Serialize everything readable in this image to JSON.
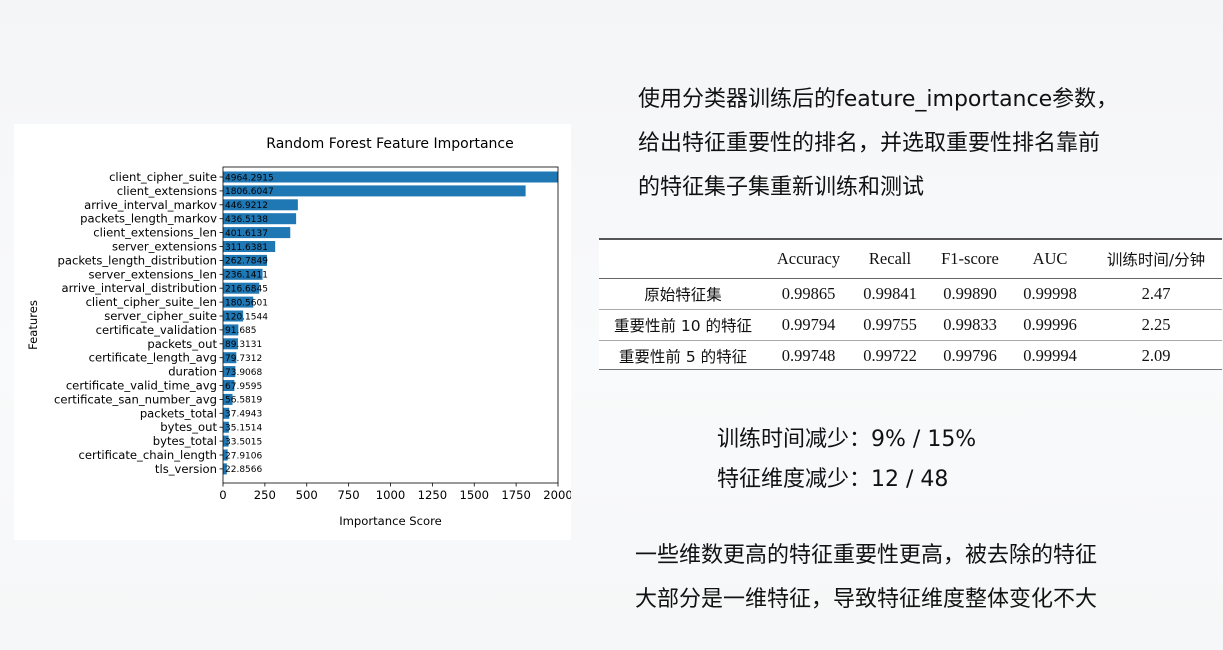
{
  "slide": {
    "heading_lines": [
      "使用分类器训练后的feature_importance参数，",
      "给出特征重要性的排名，并选取重要性排名靠前",
      "的特征集子集重新训练和测试"
    ],
    "metrics": [
      {
        "label": "训练时间减少：",
        "value": "9% / 15%"
      },
      {
        "label": "特征维度减少：",
        "value": "12 / 48"
      }
    ],
    "note_lines": [
      "一些维数更高的特征重要性更高，被去除的特征",
      "大部分是一维特征，导致特征维度整体变化不大"
    ]
  },
  "results_table": {
    "headers": [
      "",
      "Accuracy",
      "Recall",
      "F1-score",
      "AUC",
      "训练时间/分钟"
    ],
    "rows": [
      [
        "原始特征集",
        "0.99865",
        "0.99841",
        "0.99890",
        "0.99998",
        "2.47"
      ],
      [
        "重要性前 10 的特征",
        "0.99794",
        "0.99755",
        "0.99833",
        "0.99996",
        "2.25"
      ],
      [
        "重要性前 5 的特征",
        "0.99748",
        "0.99722",
        "0.99796",
        "0.99994",
        "2.09"
      ]
    ]
  },
  "chart_data": {
    "type": "bar",
    "orientation": "horizontal",
    "title": "Random Forest Feature Importance",
    "xlabel": "Importance Score",
    "ylabel": "Features",
    "xlim": [
      0,
      2000
    ],
    "xticks": [
      0,
      250,
      500,
      750,
      1000,
      1250,
      1500,
      1750,
      2000
    ],
    "grid": false,
    "bar_color": "#1f77b4",
    "categories": [
      "client_cipher_suite",
      "client_extensions",
      "arrive_interval_markov",
      "packets_length_markov",
      "client_extensions_len",
      "server_extensions",
      "packets_length_distribution",
      "server_extensions_len",
      "arrive_interval_distribution",
      "client_cipher_suite_len",
      "server_cipher_suite",
      "certificate_validation",
      "packets_out",
      "certificate_length_avg",
      "duration",
      "certificate_valid_time_avg",
      "certificate_san_number_avg",
      "packets_total",
      "bytes_out",
      "bytes_total",
      "certificate_chain_length",
      "tls_version"
    ],
    "values": [
      4964.2915,
      1806.6047,
      446.9212,
      436.5138,
      401.6137,
      311.6381,
      262.7849,
      236.1411,
      216.6845,
      180.5601,
      120.1544,
      91.685,
      89.3131,
      79.7312,
      73.9068,
      67.9595,
      56.5819,
      37.4943,
      35.1514,
      33.5015,
      27.9106,
      22.8566
    ],
    "value_labels": [
      "4964.2915",
      "1806.6047",
      "446.9212",
      "436.5138",
      "401.6137",
      "311.6381",
      "262.7849",
      "236.1411",
      "216.6845",
      "180.5601",
      "120.1544",
      "91.685",
      "89.3131",
      "79.7312",
      "73.9068",
      "67.9595",
      "56.5819",
      "37.4943",
      "35.1514",
      "33.5015",
      "27.9106",
      "22.8566"
    ]
  }
}
